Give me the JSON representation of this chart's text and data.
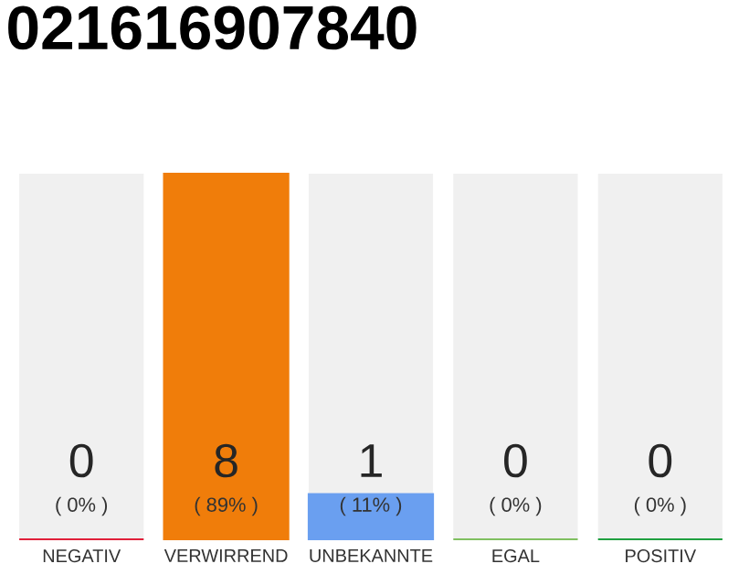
{
  "chart_data": {
    "type": "bar",
    "title": "021616907840",
    "categories": [
      "NEGATIV",
      "VERWIRREND",
      "UNBEKANNTE",
      "EGAL",
      "POSITIV"
    ],
    "values": [
      0,
      89,
      11,
      0,
      0
    ],
    "colors": [
      "#e0203a",
      "#f07d0a",
      "#6a9ff0",
      "#80c060",
      "#20a040"
    ],
    "value_labels": [
      "( 0% )",
      "( 89% )",
      "( 11% )",
      "( 0% )",
      "( 0% )"
    ],
    "annotations": [
      "0",
      "8",
      "1",
      "0",
      "0"
    ],
    "bands": [
      {
        "axis": "x",
        "from": "NEGATIV",
        "to": "NEGATIV",
        "color": "#f0f0f0"
      },
      {
        "axis": "x",
        "from": "UNBEKANNTE",
        "to": "UNBEKANNTE",
        "color": "#f0f0f0"
      },
      {
        "axis": "x",
        "from": "EGAL",
        "to": "EGAL",
        "color": "#f0f0f0"
      },
      {
        "axis": "x",
        "from": "POSITIV",
        "to": "POSITIV",
        "color": "#f0f0f0"
      }
    ]
  }
}
